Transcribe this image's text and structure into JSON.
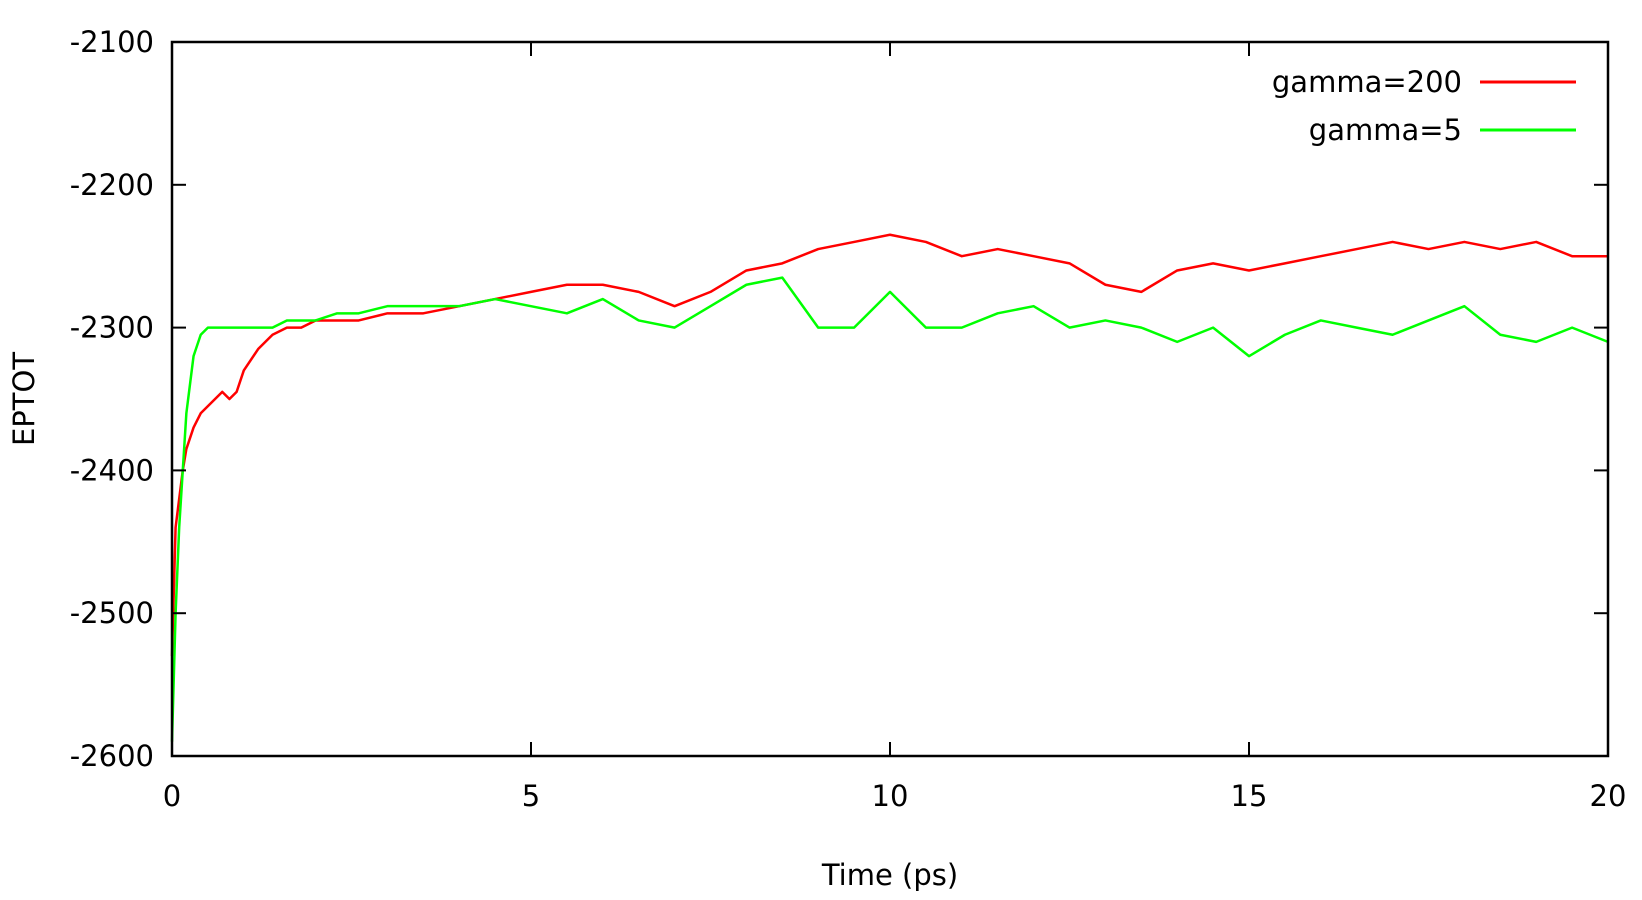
{
  "chart_data": {
    "type": "line",
    "title": "",
    "xlabel": "Time (ps)",
    "ylabel": "EPTOT",
    "xlim": [
      0,
      20
    ],
    "ylim": [
      -2600,
      -2100
    ],
    "x_ticks": [
      0,
      5,
      10,
      15,
      20
    ],
    "y_ticks": [
      -2600,
      -2500,
      -2400,
      -2300,
      -2200,
      -2100
    ],
    "x_tick_labels": [
      "0",
      "5",
      "10",
      "15",
      "20"
    ],
    "y_tick_labels": [
      "-2600",
      "-2500",
      "-2400",
      "-2300",
      "-2200",
      "-2100"
    ],
    "grid": false,
    "legend_position": "top-right",
    "x": [
      0,
      0.05,
      0.1,
      0.15,
      0.2,
      0.3,
      0.4,
      0.5,
      0.6,
      0.7,
      0.8,
      0.9,
      1,
      1.2,
      1.4,
      1.6,
      1.8,
      2,
      2.3,
      2.6,
      3,
      3.5,
      4,
      4.5,
      5,
      5.5,
      6,
      6.5,
      7,
      7.5,
      8,
      8.5,
      9,
      9.5,
      10,
      10.5,
      11,
      11.5,
      12,
      12.5,
      13,
      13.5,
      14,
      14.5,
      15,
      15.5,
      16,
      16.5,
      17,
      17.5,
      18,
      18.5,
      19,
      19.5,
      20
    ],
    "series": [
      {
        "name": "gamma=200",
        "color": "#ff0000",
        "values": [
          -2530,
          -2440,
          -2420,
          -2400,
          -2385,
          -2370,
          -2360,
          -2355,
          -2350,
          -2345,
          -2350,
          -2345,
          -2330,
          -2315,
          -2305,
          -2300,
          -2300,
          -2295,
          -2295,
          -2295,
          -2290,
          -2290,
          -2285,
          -2280,
          -2275,
          -2270,
          -2270,
          -2275,
          -2285,
          -2275,
          -2260,
          -2255,
          -2245,
          -2240,
          -2235,
          -2240,
          -2250,
          -2245,
          -2250,
          -2255,
          -2270,
          -2275,
          -2260,
          -2255,
          -2260,
          -2255,
          -2250,
          -2245,
          -2240,
          -2245,
          -2240,
          -2245,
          -2240,
          -2250,
          -2250
        ]
      },
      {
        "name": "gamma=5",
        "color": "#00ff00",
        "values": [
          -2590,
          -2500,
          -2440,
          -2400,
          -2360,
          -2320,
          -2305,
          -2300,
          -2300,
          -2300,
          -2300,
          -2300,
          -2300,
          -2300,
          -2300,
          -2295,
          -2295,
          -2295,
          -2290,
          -2290,
          -2285,
          -2285,
          -2285,
          -2280,
          -2285,
          -2290,
          -2280,
          -2295,
          -2300,
          -2285,
          -2270,
          -2265,
          -2300,
          -2300,
          -2275,
          -2300,
          -2300,
          -2290,
          -2285,
          -2300,
          -2295,
          -2300,
          -2310,
          -2300,
          -2320,
          -2305,
          -2295,
          -2300,
          -2305,
          -2295,
          -2285,
          -2305,
          -2310,
          -2300,
          -2310
        ]
      }
    ]
  }
}
